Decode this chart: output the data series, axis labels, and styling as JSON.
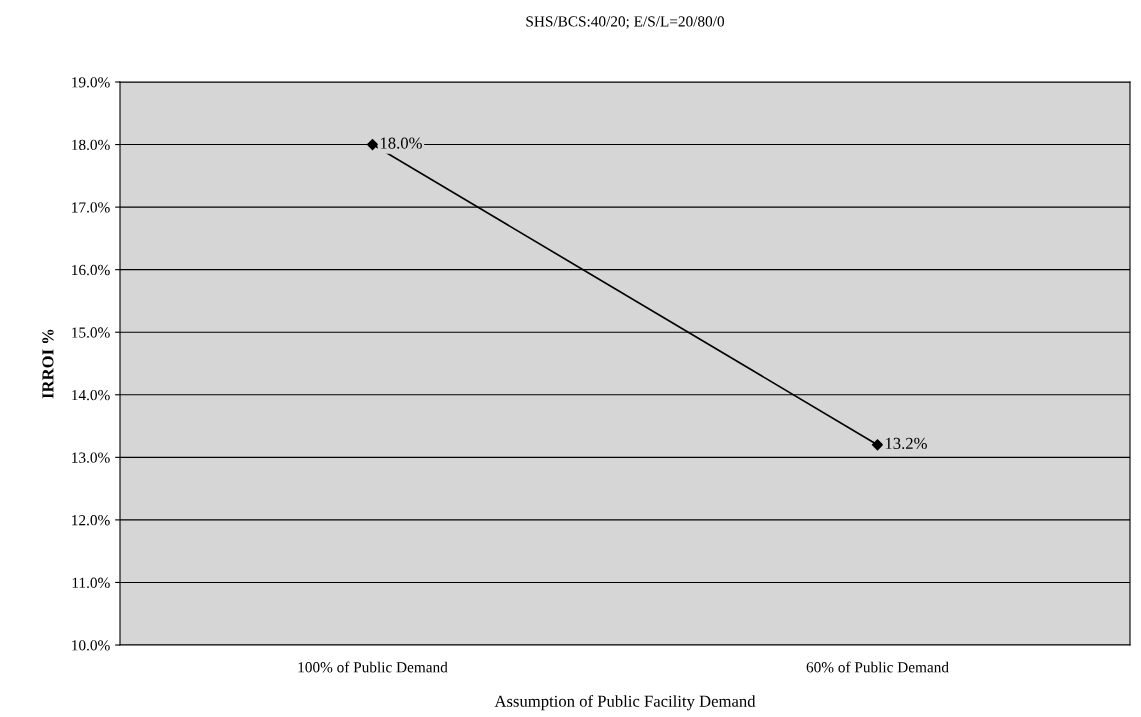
{
  "chart_data": {
    "type": "line",
    "title": "SHS/BCS:40/20; E/S/L=20/80/0",
    "xlabel": "Assumption of Public Facility Demand",
    "ylabel": "IRROI %",
    "categories": [
      "100% of Public Demand",
      "60% of Public Demand"
    ],
    "series": [
      {
        "color": "#000000",
        "values": [
          18.0,
          13.2
        ],
        "value_labels": [
          "18.0%",
          "13.2%"
        ]
      }
    ],
    "ylim": [
      10,
      19
    ],
    "yticks": [
      {
        "value": 10,
        "label": "10.0%"
      },
      {
        "value": 11,
        "label": "11.0%"
      },
      {
        "value": 12,
        "label": "12.0%"
      },
      {
        "value": 13,
        "label": "13.0%"
      },
      {
        "value": 14,
        "label": "14.0%"
      },
      {
        "value": 15,
        "label": "15.0%"
      },
      {
        "value": 16,
        "label": "16.0%"
      },
      {
        "value": 17,
        "label": "17.0%"
      },
      {
        "value": 18,
        "label": "18.0%"
      },
      {
        "value": 19,
        "label": "19.0%"
      }
    ],
    "grid": "y",
    "marker": "diamond",
    "line_style": "solid",
    "legend": false
  }
}
